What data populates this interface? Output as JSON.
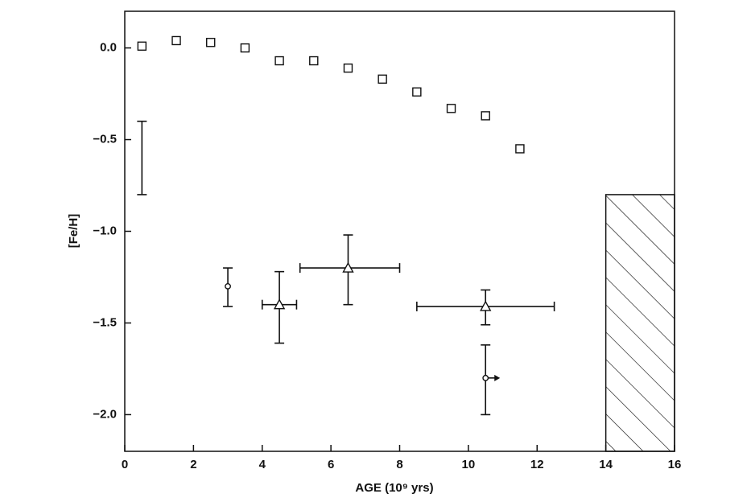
{
  "chart_data": {
    "type": "scatter",
    "xlabel": "AGE (10⁹ yrs)",
    "ylabel": "[Fe/H]",
    "xlim": [
      0,
      16
    ],
    "ylim": [
      -2.2,
      0.2
    ],
    "xticks": [
      0,
      2,
      4,
      6,
      8,
      10,
      12,
      14,
      16
    ],
    "yticks": [
      {
        "value": 0,
        "label": "0.0"
      },
      {
        "value": -0.5,
        "label": "−0.5"
      },
      {
        "value": -1.0,
        "label": "−1.0"
      },
      {
        "value": -1.5,
        "label": "−1.5"
      },
      {
        "value": -2.0,
        "label": "−2.0"
      }
    ],
    "color": "#111111",
    "series": [
      {
        "marker": "square",
        "x": [
          0.5,
          1.5,
          2.5,
          3.5,
          4.5,
          5.5,
          6.5,
          7.5,
          8.5,
          9.5,
          10.5,
          11.5
        ],
        "values": [
          0.01,
          0.04,
          0.03,
          0.0,
          -0.07,
          -0.07,
          -0.11,
          -0.17,
          -0.24,
          -0.33,
          -0.37,
          -0.55
        ]
      },
      {
        "marker": "none",
        "x": [
          0.5
        ],
        "ylow": [
          -0.8
        ],
        "yhigh": [
          -0.4
        ]
      },
      {
        "marker": "circle",
        "x": [
          3,
          10.5
        ],
        "values": [
          -1.3,
          -1.8
        ],
        "ylow": [
          -1.41,
          -2.0
        ],
        "yhigh": [
          -1.2,
          -1.62
        ],
        "x_lower_limit": [
          false,
          true
        ]
      },
      {
        "marker": "triangle",
        "x": [
          4.5,
          6.5,
          10.5
        ],
        "values": [
          -1.4,
          -1.2,
          -1.41
        ],
        "ylow": [
          -1.61,
          -1.4,
          -1.51
        ],
        "yhigh": [
          -1.22,
          -1.02,
          -1.32
        ],
        "xlow": [
          4.0,
          5.1,
          8.5
        ],
        "xhigh": [
          5.0,
          8.0,
          12.5
        ]
      }
    ],
    "regions": [
      {
        "x": [
          14,
          16
        ],
        "y": [
          -2.2,
          -0.8
        ],
        "hatch": true
      }
    ]
  }
}
